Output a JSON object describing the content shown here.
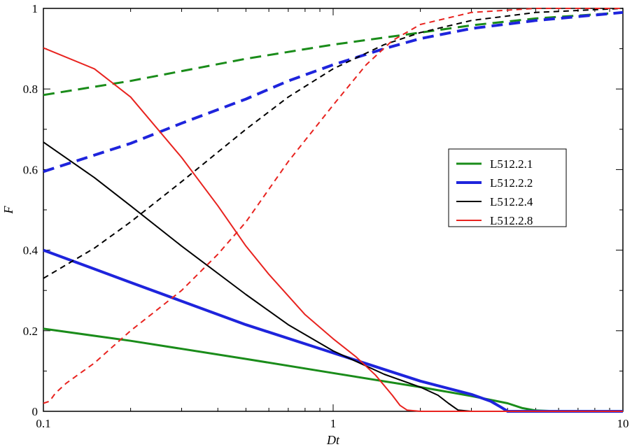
{
  "chart_data": {
    "type": "line",
    "title": "",
    "xlabel": "Dt",
    "ylabel": "F",
    "xscale": "log",
    "xlim": [
      0.1,
      10
    ],
    "ylim": [
      0,
      1
    ],
    "x_ticks": [
      0.1,
      1,
      10
    ],
    "x_tick_labels": [
      "0.1",
      "1",
      "10"
    ],
    "y_ticks": [
      0,
      0.2,
      0.4,
      0.6,
      0.8,
      1
    ],
    "y_tick_labels": [
      "0",
      "0.2",
      "0.4",
      "0.6",
      "0.8",
      "1"
    ],
    "grid": false,
    "legend_position": "right",
    "series": [
      {
        "name": "L512.2.1",
        "color": "#1a8c1a",
        "dashed": false,
        "x": [
          0.1,
          0.2,
          0.5,
          1,
          2,
          3,
          4,
          4.5,
          5,
          6,
          8,
          10
        ],
        "y": [
          0.205,
          0.175,
          0.13,
          0.095,
          0.06,
          0.038,
          0.02,
          0.008,
          0.002,
          0,
          0,
          0
        ]
      },
      {
        "name": "L512.2.1",
        "color": "#1a8c1a",
        "dashed": true,
        "x": [
          0.1,
          0.2,
          0.5,
          1,
          2,
          3,
          5,
          10
        ],
        "y": [
          0.785,
          0.82,
          0.875,
          0.91,
          0.94,
          0.958,
          0.975,
          0.99
        ]
      },
      {
        "name": "L512.2.2",
        "color": "#1e24dc",
        "dashed": false,
        "x": [
          0.1,
          0.2,
          0.5,
          1,
          2,
          3,
          3.5,
          3.8,
          4,
          6,
          10
        ],
        "y": [
          0.4,
          0.32,
          0.215,
          0.145,
          0.075,
          0.042,
          0.025,
          0.01,
          0,
          0,
          0
        ]
      },
      {
        "name": "L512.2.2",
        "color": "#1e24dc",
        "dashed": true,
        "x": [
          0.1,
          0.2,
          0.3,
          0.5,
          0.7,
          1,
          1.5,
          2,
          3,
          5,
          10
        ],
        "y": [
          0.595,
          0.665,
          0.715,
          0.775,
          0.82,
          0.86,
          0.9,
          0.925,
          0.95,
          0.97,
          0.99
        ]
      },
      {
        "name": "L512.2.4",
        "color": "#000000",
        "dashed": false,
        "x": [
          0.1,
          0.15,
          0.2,
          0.3,
          0.5,
          0.7,
          1,
          1.5,
          2,
          2.3,
          2.5,
          2.7,
          3,
          5,
          10
        ],
        "y": [
          0.668,
          0.58,
          0.51,
          0.41,
          0.29,
          0.215,
          0.15,
          0.092,
          0.06,
          0.04,
          0.02,
          0.003,
          0,
          0,
          0
        ]
      },
      {
        "name": "L512.2.4",
        "color": "#000000",
        "dashed": true,
        "x": [
          0.1,
          0.15,
          0.2,
          0.3,
          0.5,
          0.7,
          1,
          1.5,
          2,
          3,
          5,
          10
        ],
        "y": [
          0.33,
          0.405,
          0.47,
          0.57,
          0.7,
          0.78,
          0.85,
          0.91,
          0.94,
          0.97,
          0.99,
          1.0
        ]
      },
      {
        "name": "L512.2.8",
        "color": "#e8231f",
        "dashed": false,
        "x": [
          0.1,
          0.15,
          0.2,
          0.3,
          0.4,
          0.5,
          0.6,
          0.8,
          1,
          1.2,
          1.4,
          1.6,
          1.7,
          1.8,
          2,
          3,
          10
        ],
        "y": [
          0.902,
          0.85,
          0.78,
          0.63,
          0.51,
          0.41,
          0.34,
          0.24,
          0.18,
          0.135,
          0.09,
          0.04,
          0.015,
          0.003,
          0,
          0,
          0
        ]
      },
      {
        "name": "L512.2.8",
        "color": "#e8231f",
        "dashed": true,
        "x": [
          0.1,
          0.105,
          0.11,
          0.12,
          0.15,
          0.2,
          0.3,
          0.4,
          0.5,
          0.7,
          1,
          1.3,
          1.6,
          2,
          3,
          5,
          10
        ],
        "y": [
          0.02,
          0.025,
          0.045,
          0.07,
          0.12,
          0.2,
          0.3,
          0.39,
          0.47,
          0.62,
          0.76,
          0.86,
          0.92,
          0.96,
          0.99,
          1.0,
          1.0
        ]
      }
    ],
    "legend": [
      {
        "label": "L512.2.1",
        "color": "#1a8c1a",
        "width": 3
      },
      {
        "label": "L512.2.2",
        "color": "#1e24dc",
        "width": 4
      },
      {
        "label": "L512.2.4",
        "color": "#000000",
        "width": 2
      },
      {
        "label": "L512.2.8",
        "color": "#e8231f",
        "width": 2
      }
    ]
  }
}
